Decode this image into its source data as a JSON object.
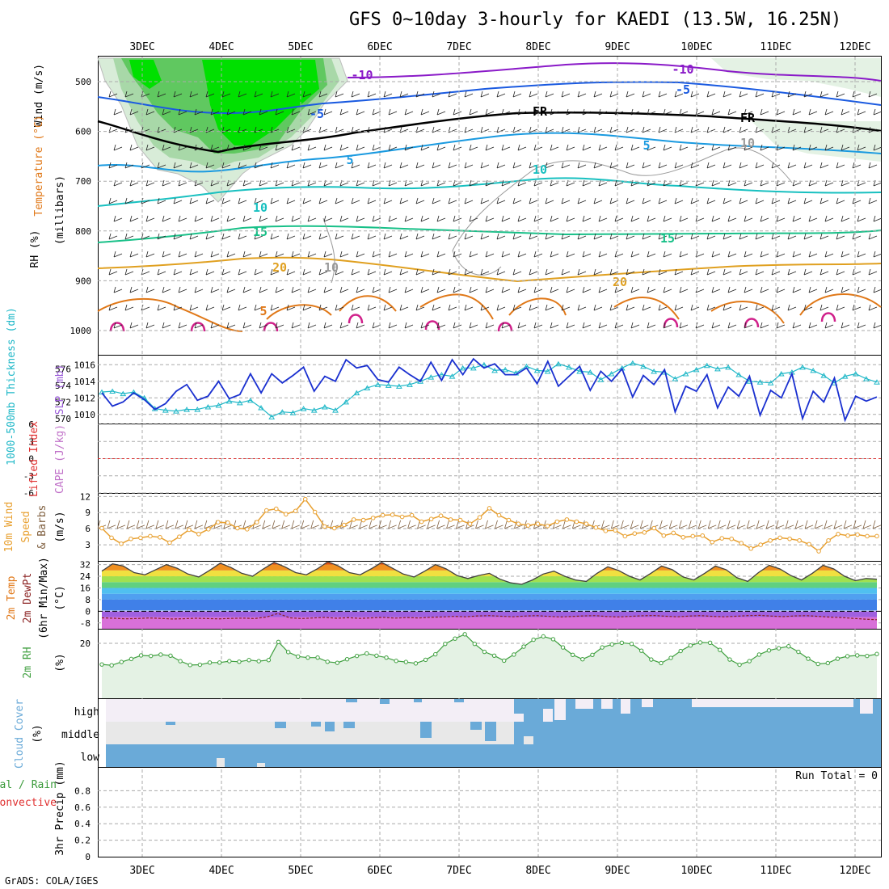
{
  "header": {
    "title": "GFS 0~10day 3-hourly for KAEDI (13.5W, 16.25N)"
  },
  "footer": {
    "credit": "GrADS: COLA/IGES"
  },
  "dates": [
    "3DEC",
    "4DEC",
    "5DEC",
    "6DEC",
    "7DEC",
    "8DEC",
    "9DEC",
    "10DEC",
    "11DEC",
    "12DEC"
  ],
  "colors": {
    "rh_green": "#00e000",
    "temp_purple": "#8a1ac8",
    "temp_blue": "#1a5ae0",
    "temp_cyan": "#1a9ae0",
    "temp_teal": "#18c0c0",
    "temp_green": "#18c088",
    "temp_yellow": "#e0a020",
    "temp_orange": "#e07818",
    "temp_magenta": "#d0208a",
    "thickness": "#20b8c8",
    "slp": "#1a30d0",
    "wind10": "#e8a030",
    "rh2m": "#40a040",
    "cloud": "#6aaad8"
  },
  "panels": {
    "upper": {
      "ylabel_wind": "Wind (m/s)",
      "ylabel_temp": "Temperature (°C)",
      "ylabel_mb": "(millibars)",
      "ylabel_rh": "RH (%)",
      "y_ticks": [
        "500",
        "600",
        "700",
        "800",
        "900",
        "1000"
      ],
      "contour_labels": [
        "-10",
        "-10",
        "-5",
        "-5",
        "FR",
        "FR",
        "5",
        "5",
        "10",
        "10",
        "15",
        "15",
        "20",
        "20",
        "5",
        "10",
        "10"
      ]
    },
    "slp": {
      "ylabel_left": "1000-500mb Thickness (dm)",
      "ylabel_right": "SLP (mb)",
      "left_ticks": [
        "570",
        "572",
        "574",
        "576"
      ],
      "right_ticks": [
        "1010",
        "1012",
        "1014",
        "1016"
      ]
    },
    "cape": {
      "ylabel_left": "Lifted Index",
      "ylabel_right": "CAPE (J/kg)",
      "ticks": [
        "-6",
        "-3",
        "0",
        "3",
        "6"
      ]
    },
    "wind10": {
      "ylabel_a": "10m Wind",
      "ylabel_b": "Speed",
      "ylabel_c": "& Barbs",
      "ylabel_d": "(m/s)",
      "ticks": [
        "3",
        "6",
        "9",
        "12"
      ]
    },
    "temp2m": {
      "ylabel_a": "2m Temp",
      "ylabel_b": "2m DewPt",
      "ylabel_c": "(6hr Min/Max)",
      "ylabel_d": "(°C)",
      "ticks": [
        "-8",
        "0",
        "8",
        "16",
        "24",
        "32"
      ]
    },
    "rh2m": {
      "ylabel_a": "2m RH",
      "ylabel_b": "(%)",
      "ticks": [
        "20"
      ]
    },
    "cloud": {
      "ylabel_a": "Cloud Cover",
      "ylabel_b": "(%)",
      "levels": [
        "high",
        "middle",
        "low"
      ]
    },
    "precip": {
      "ylabel_a": "Total / Rain",
      "ylabel_b": "Convective",
      "ylabel_c": "3hr Precip (mm)",
      "ticks": [
        "0",
        "0.2",
        "0.4",
        "0.6",
        "0.8"
      ],
      "run_total": "Run Total = 0"
    }
  },
  "chart_data": [
    {
      "type": "line",
      "title": "SLP (mb)",
      "series": [
        {
          "name": "SLP (mb)",
          "values": [
            1012.6,
            1011.0,
            1011.5,
            1012.6,
            1011.8,
            1010.6,
            1011.3,
            1012.8,
            1013.6,
            1011.7,
            1012.2,
            1014.0,
            1011.9,
            1012.4,
            1014.9,
            1012.6,
            1014.9,
            1013.8,
            1014.7,
            1015.7,
            1012.8,
            1014.6,
            1014.0,
            1016.6,
            1015.6,
            1015.9,
            1014.2,
            1013.9,
            1015.7,
            1014.8,
            1014.0,
            1016.3,
            1014.1,
            1016.6,
            1014.8,
            1016.7,
            1015.6,
            1016.1,
            1014.8,
            1014.8,
            1015.6,
            1013.7,
            1016.4,
            1013.4,
            1014.6,
            1015.8,
            1012.9,
            1015.2,
            1014.0,
            1015.5,
            1012.1,
            1014.7,
            1013.6,
            1015.4,
            1010.3,
            1013.4,
            1012.8,
            1014.8,
            1010.8,
            1013.3,
            1012.2,
            1014.6,
            1009.9,
            1012.9,
            1012.0,
            1014.9,
            1009.5,
            1012.8,
            1011.5,
            1014.4,
            1009.3,
            1012.2,
            1011.6,
            1012.1
          ]
        }
      ],
      "xlabel": "",
      "ylim": [
        1009,
        1017
      ]
    },
    {
      "type": "line",
      "title": "1000-500mb Thickness (dm)",
      "series": [
        {
          "name": "1000-500mb Thickness (dm)",
          "values": [
            572.7,
            572.8,
            572.5,
            572.7,
            572.0,
            570.7,
            570.5,
            570.4,
            570.6,
            570.6,
            570.9,
            571.1,
            571.6,
            571.4,
            571.7,
            570.8,
            569.7,
            570.3,
            570.2,
            570.7,
            570.5,
            570.9,
            570.5,
            571.5,
            572.6,
            573.2,
            573.6,
            573.5,
            573.4,
            573.6,
            574.0,
            574.5,
            574.8,
            574.6,
            575.6,
            575.6,
            576.0,
            575.3,
            575.4,
            575.0,
            575.8,
            575.3,
            575.2,
            576.1,
            575.7,
            575.2,
            575.1,
            574.2,
            574.9,
            575.6,
            576.2,
            575.8,
            575.2,
            575.1,
            574.3,
            574.9,
            575.4,
            575.9,
            575.5,
            575.7,
            574.8,
            574.0,
            573.9,
            573.8,
            574.9,
            575.1,
            575.7,
            575.3,
            574.7,
            573.8,
            574.6,
            574.9,
            574.3,
            573.9
          ]
        }
      ],
      "ylim": [
        569,
        577
      ]
    },
    {
      "type": "line",
      "title": "10m Wind Speed (m/s)",
      "series": [
        {
          "name": "10m Wind Speed (m/s)",
          "values": [
            6.1,
            4.3,
            3.2,
            4.1,
            4.3,
            4.6,
            4.4,
            3.4,
            4.5,
            5.8,
            5.0,
            5.9,
            7.2,
            7.1,
            6.1,
            5.9,
            7.2,
            9.4,
            9.7,
            8.7,
            9.3,
            11.5,
            9.1,
            6.4,
            6.1,
            6.7,
            7.7,
            7.6,
            8.0,
            8.5,
            8.6,
            8.2,
            8.5,
            7.3,
            7.8,
            8.4,
            7.7,
            7.6,
            6.9,
            8.1,
            9.8,
            8.5,
            7.6,
            6.9,
            6.6,
            6.9,
            6.5,
            7.3,
            7.7,
            7.3,
            6.9,
            6.2,
            5.6,
            5.7,
            4.6,
            5.1,
            5.3,
            6.1,
            4.7,
            5.2,
            4.4,
            4.6,
            4.7,
            3.5,
            4.2,
            4.1,
            3.3,
            2.3,
            3.0,
            3.8,
            4.3,
            4.1,
            3.8,
            3.1,
            1.8,
            3.8,
            5.0,
            4.7,
            4.9,
            4.6,
            4.6
          ]
        }
      ],
      "ylim": [
        0,
        12
      ]
    },
    {
      "type": "area",
      "title": "2m Temp (°C)",
      "series": [
        {
          "name": "2m Temp (°C)",
          "values": [
            27.5,
            32.5,
            31.0,
            26.5,
            25.0,
            28.5,
            32.0,
            29.5,
            25.5,
            23.5,
            28.0,
            33.0,
            30.0,
            26.0,
            24.0,
            29.0,
            33.5,
            30.5,
            26.5,
            25.0,
            29.0,
            34.0,
            31.0,
            26.5,
            25.0,
            29.0,
            33.5,
            29.5,
            25.5,
            23.5,
            27.5,
            32.0,
            29.0,
            24.5,
            22.5,
            24.5,
            26.0,
            22.0,
            19.5,
            18.5,
            21.5,
            25.5,
            27.5,
            24.0,
            21.5,
            20.5,
            26.0,
            30.5,
            28.0,
            24.0,
            21.5,
            26.0,
            31.0,
            28.5,
            23.5,
            21.5,
            26.0,
            31.0,
            28.5,
            23.0,
            20.5,
            26.5,
            31.5,
            29.0,
            24.5,
            21.5,
            26.0,
            31.5,
            29.0,
            24.0,
            21.0,
            22.5,
            22.0
          ]
        },
        {
          "name": "2m DewPt (°C)",
          "values": [
            -4.5,
            -4.8,
            -5.2,
            -5.0,
            -4.6,
            -4.9,
            -5.3,
            -5.1,
            -4.8,
            -5.0,
            -5.2,
            -4.9,
            -4.7,
            -5.0,
            -4.0,
            -1.5,
            -4.5,
            -5.0,
            -4.6,
            -4.2,
            -4.8,
            -4.4,
            -4.9,
            -4.5,
            -4.2,
            -4.7,
            -4.3,
            -4.6,
            -4.1,
            -3.9,
            -3.5,
            -3.8,
            -3.2,
            -3.0,
            -3.4,
            -3.8,
            -3.3,
            -3.0,
            -3.5,
            -3.9,
            -3.6,
            -3.2,
            -3.0,
            -3.6,
            -3.9,
            -3.5,
            -3.1,
            -2.9,
            -3.4,
            -3.8,
            -3.3,
            -3.0,
            -3.5,
            -3.8,
            -3.4,
            -3.0,
            -2.8,
            -3.3,
            -3.7,
            -3.2,
            -3.0,
            -3.5,
            -4.0,
            -4.3,
            -4.9,
            -5.4,
            -5.8
          ]
        }
      ],
      "ylim": [
        -12,
        34
      ]
    },
    {
      "type": "area",
      "title": "2m RH (%)",
      "series": [
        {
          "name": "2m RH (%)",
          "values": [
            12.3,
            12.0,
            13.2,
            14.3,
            15.6,
            15.4,
            15.9,
            15.5,
            13.5,
            12.1,
            12.2,
            13.0,
            13.0,
            13.5,
            13.3,
            13.9,
            13.5,
            13.9,
            20.5,
            16.8,
            15.2,
            14.8,
            14.8,
            13.3,
            12.9,
            14.2,
            15.4,
            16.3,
            15.5,
            14.8,
            13.6,
            13.2,
            12.7,
            14.0,
            16.0,
            19.8,
            21.7,
            23.3,
            19.8,
            16.9,
            15.5,
            13.7,
            15.9,
            18.8,
            21.3,
            22.5,
            21.5,
            18.5,
            15.8,
            14.2,
            15.8,
            18.5,
            19.6,
            20.2,
            19.8,
            17.3,
            14.1,
            12.8,
            14.7,
            17.2,
            19.2,
            20.3,
            20.2,
            17.6,
            14.1,
            12.2,
            13.5,
            15.9,
            17.4,
            18.2,
            18.9,
            16.9,
            14.4,
            12.5,
            12.8,
            14.4,
            15.3,
            15.6,
            15.4,
            16.1
          ]
        }
      ],
      "ylim": [
        0,
        30
      ]
    },
    {
      "type": "bar",
      "title": "3hr Precip (mm)",
      "series": [
        {
          "name": "Total / Rain",
          "values": []
        },
        {
          "name": "Convective",
          "values": []
        }
      ],
      "ylim": [
        0,
        1
      ]
    }
  ]
}
